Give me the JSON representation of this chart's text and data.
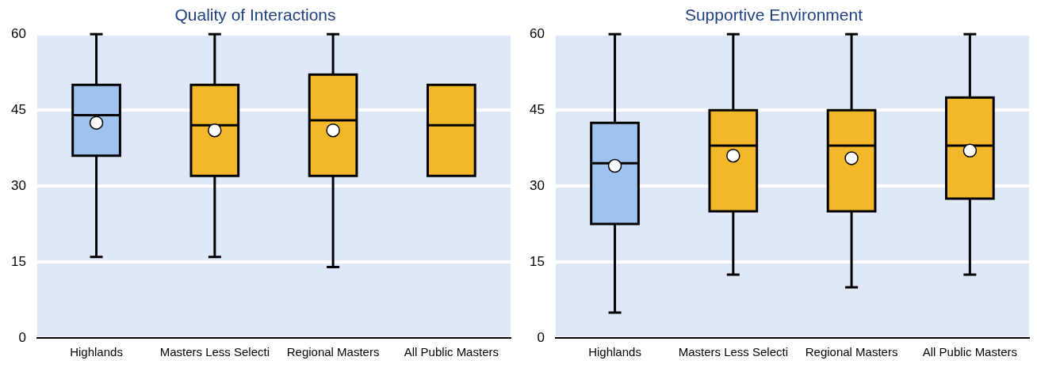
{
  "chart_data": [
    {
      "type": "box",
      "title": "Quality of Interactions",
      "categories": [
        "Highlands",
        "Masters Less Selecti",
        "Regional Masters",
        "All Public Masters"
      ],
      "colors": [
        "#9dc3ee",
        "#f2b82a",
        "#f2b82a",
        "#f2b82a"
      ],
      "boxes": [
        {
          "low": 16,
          "q1": 36,
          "median": 44,
          "q3": 50,
          "high": 60,
          "mean": 42.5
        },
        {
          "low": 16,
          "q1": 32,
          "median": 42,
          "q3": 50,
          "high": 60,
          "mean": 41
        },
        {
          "low": 14,
          "q1": 32,
          "median": 43,
          "q3": 52,
          "high": 60,
          "mean": 41
        },
        {
          "low": null,
          "q1": 32,
          "median": 42,
          "q3": 50,
          "high": null,
          "mean": null
        }
      ],
      "ylim": [
        0,
        60
      ],
      "yticks": [
        0,
        15,
        30,
        45,
        60
      ],
      "grid": "y"
    },
    {
      "type": "box",
      "title": "Supportive Environment",
      "categories": [
        "Highlands",
        "Masters Less Selecti",
        "Regional Masters",
        "All Public Masters"
      ],
      "colors": [
        "#9dc3ee",
        "#f2b82a",
        "#f2b82a",
        "#f2b82a"
      ],
      "boxes": [
        {
          "low": 5,
          "q1": 22.5,
          "median": 34.5,
          "q3": 42.5,
          "high": 60,
          "mean": 34
        },
        {
          "low": 12.5,
          "q1": 25,
          "median": 38,
          "q3": 45,
          "high": 60,
          "mean": 36
        },
        {
          "low": 10,
          "q1": 25,
          "median": 38,
          "q3": 45,
          "high": 60,
          "mean": 35.5
        },
        {
          "low": 12.5,
          "q1": 27.5,
          "median": 38,
          "q3": 47.5,
          "high": 60,
          "mean": 37
        }
      ],
      "ylim": [
        0,
        60
      ],
      "yticks": [
        0,
        15,
        30,
        45,
        60
      ],
      "grid": "y"
    }
  ]
}
